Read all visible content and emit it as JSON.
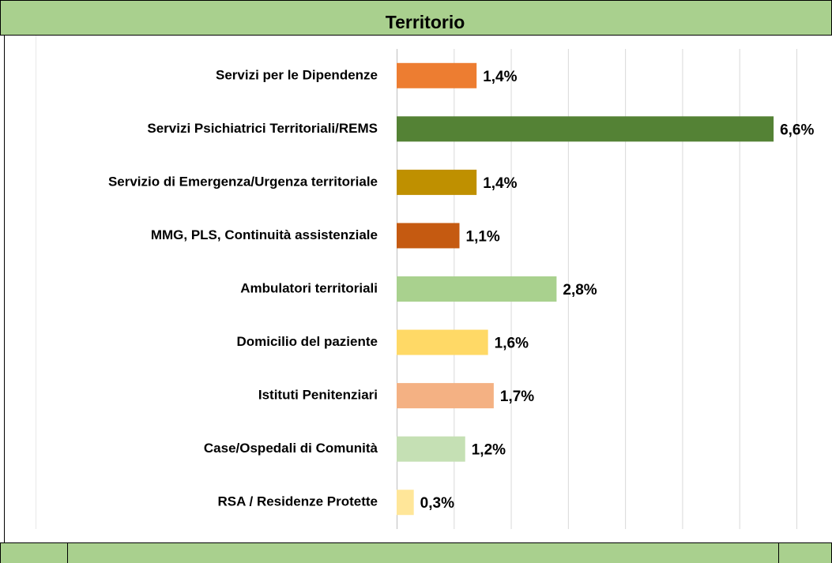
{
  "chart_data": {
    "type": "bar",
    "orientation": "horizontal",
    "title": "Territorio",
    "categories": [
      "Servizi per le Dipendenze",
      "Servizi Psichiatrici Territoriali/REMS",
      "Servizio di Emergenza/Urgenza territoriale",
      "MMG, PLS, Continuità assistenziale",
      "Ambulatori territoriali",
      "Domicilio del paziente",
      "Istituti Penitenziari",
      "Case/Ospedali di Comunità",
      "RSA / Residenze Protette"
    ],
    "values": [
      1.4,
      6.6,
      1.4,
      1.1,
      2.8,
      1.6,
      1.7,
      1.2,
      0.3
    ],
    "value_labels": [
      "1,4%",
      "6,6%",
      "1,4%",
      "1,1%",
      "2,8%",
      "1,6%",
      "1,7%",
      "1,2%",
      "0,3%"
    ],
    "colors": [
      "#ed7d31",
      "#548235",
      "#bf9000",
      "#c55a11",
      "#a9d18e",
      "#ffd966",
      "#f4b183",
      "#c5e0b4",
      "#ffe699"
    ],
    "xlim": [
      0,
      7
    ],
    "xticks": [
      0,
      1,
      2,
      3,
      4,
      5,
      6,
      7
    ],
    "grid": true
  }
}
